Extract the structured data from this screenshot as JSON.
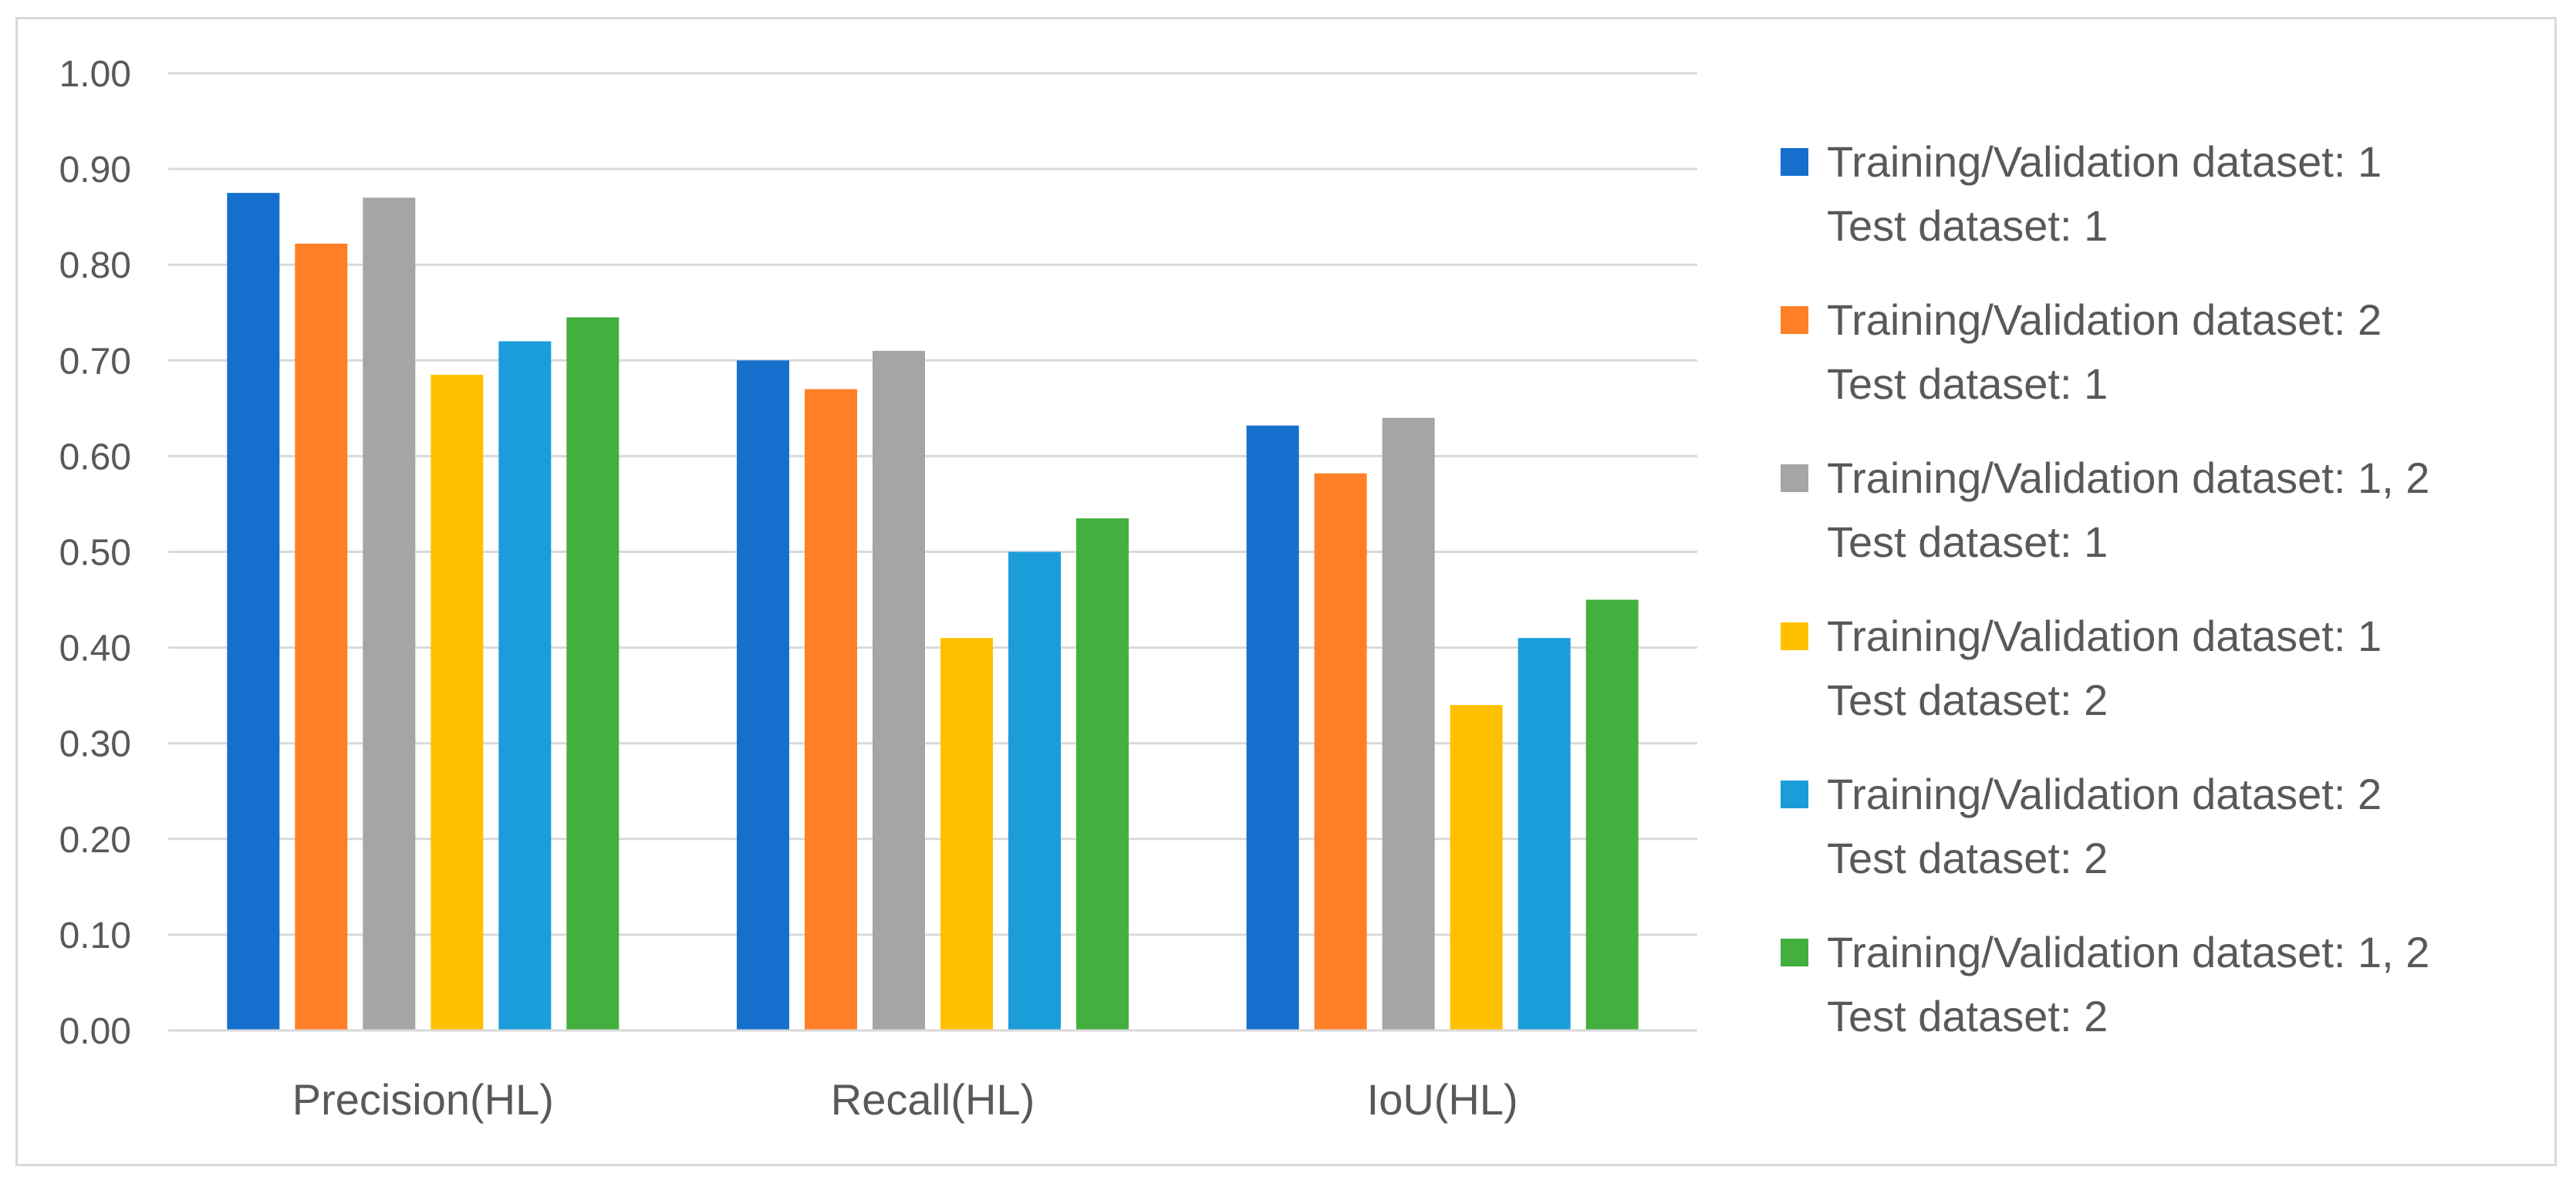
{
  "chart_data": {
    "type": "bar",
    "title": "",
    "xlabel": "",
    "ylabel": "",
    "ylim": [
      0,
      1.0
    ],
    "y_ticks": [
      "0.00",
      "0.10",
      "0.20",
      "0.30",
      "0.40",
      "0.50",
      "0.60",
      "0.70",
      "0.80",
      "0.90",
      "1.00"
    ],
    "grid": true,
    "legend_position": "right",
    "categories": [
      "Precision(HL)",
      "Recall(HL)",
      "IoU(HL)"
    ],
    "series": [
      {
        "name_line1": "Training/Validation dataset: 1",
        "name_line2": "Test dataset: 1",
        "color": "#1570CD",
        "values": [
          0.875,
          0.7,
          0.632
        ]
      },
      {
        "name_line1": "Training/Validation dataset: 2",
        "name_line2": "Test dataset: 1",
        "color": "#FF7F27",
        "values": [
          0.822,
          0.67,
          0.582
        ]
      },
      {
        "name_line1": "Training/Validation dataset: 1, 2",
        "name_line2": "Test dataset: 1",
        "color": "#A5A5A5",
        "values": [
          0.87,
          0.71,
          0.64
        ]
      },
      {
        "name_line1": "Training/Validation dataset: 1",
        "name_line2": "Test dataset: 2",
        "color": "#FFC000",
        "values": [
          0.685,
          0.41,
          0.34
        ]
      },
      {
        "name_line1": "Training/Validation dataset: 2",
        "name_line2": "Test dataset: 2",
        "color": "#1B9DD9",
        "values": [
          0.72,
          0.5,
          0.41
        ]
      },
      {
        "name_line1": "Training/Validation dataset: 1, 2",
        "name_line2": "Test dataset: 2",
        "color": "#43AF3F",
        "values": [
          0.745,
          0.535,
          0.45
        ]
      }
    ]
  }
}
